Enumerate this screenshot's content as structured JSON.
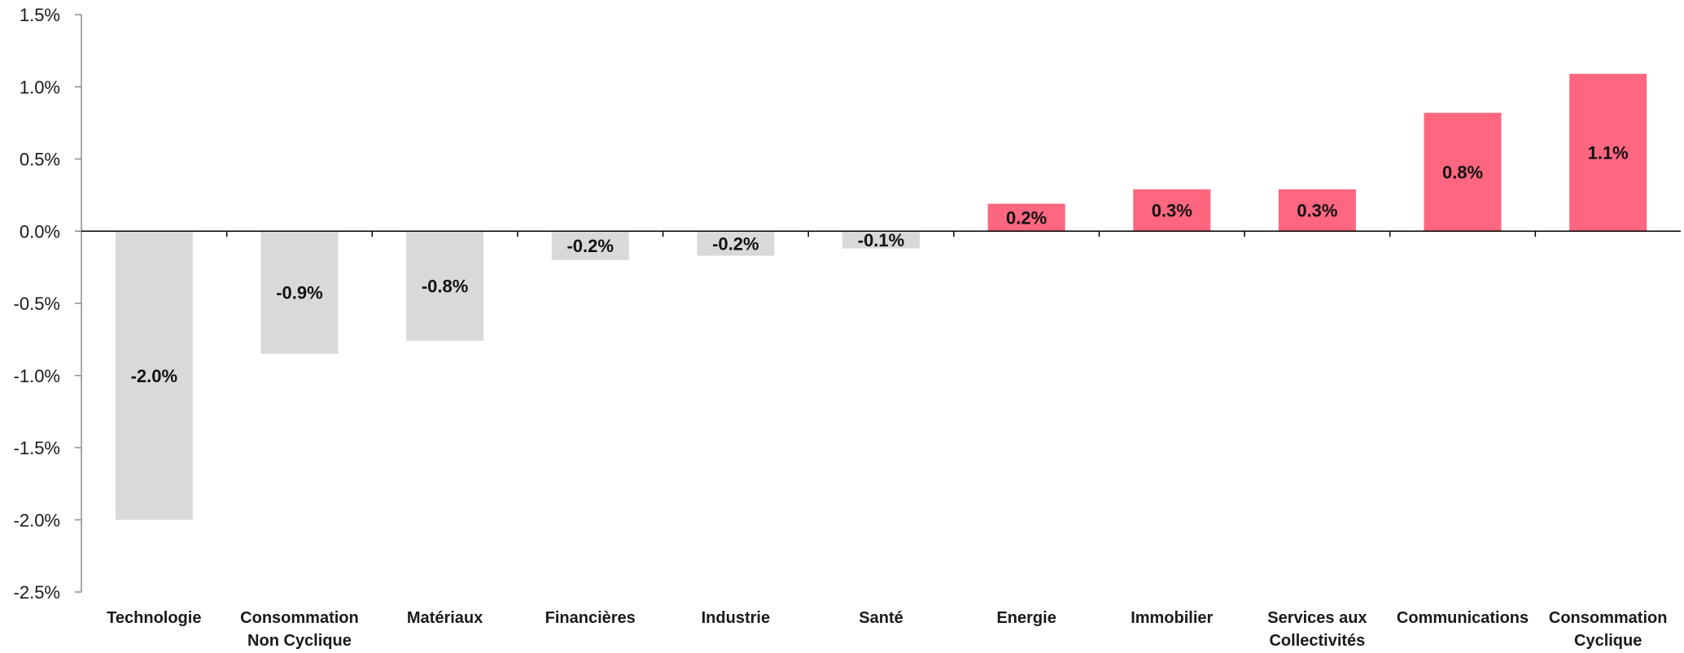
{
  "chart_data": {
    "type": "bar",
    "title": "",
    "xlabel": "",
    "ylabel": "",
    "categories": [
      [
        "Technologie"
      ],
      [
        "Consommation",
        "Non Cyclique"
      ],
      [
        "Matériaux"
      ],
      [
        "Financières"
      ],
      [
        "Industrie"
      ],
      [
        "Santé"
      ],
      [
        "Energie"
      ],
      [
        "Immobilier"
      ],
      [
        "Services aux",
        "Collectivités"
      ],
      [
        "Communications"
      ],
      [
        "Consommation",
        "Cyclique"
      ]
    ],
    "values": [
      -2.0,
      -0.85,
      -0.76,
      -0.2,
      -0.17,
      -0.12,
      0.19,
      0.29,
      0.29,
      0.82,
      1.09
    ],
    "data_labels": [
      "-2.0%",
      "-0.9%",
      "-0.8%",
      "-0.2%",
      "-0.2%",
      "-0.1%",
      "0.2%",
      "0.3%",
      "0.3%",
      "0.8%",
      "1.1%"
    ],
    "ylim": [
      -2.5,
      1.5
    ],
    "yticks": [
      1.5,
      1.0,
      0.5,
      0.0,
      -0.5,
      -1.0,
      -1.5,
      -2.0,
      -2.5
    ],
    "ytick_labels": [
      "1.5%",
      "1.0%",
      "0.5%",
      "0.0%",
      "-0.5%",
      "-1.0%",
      "-1.5%",
      "-2.0%",
      "-2.5%"
    ],
    "colors": {
      "negative": "#d9d9d9",
      "positive": "#ff6680"
    },
    "grid": false,
    "legend": "none"
  }
}
